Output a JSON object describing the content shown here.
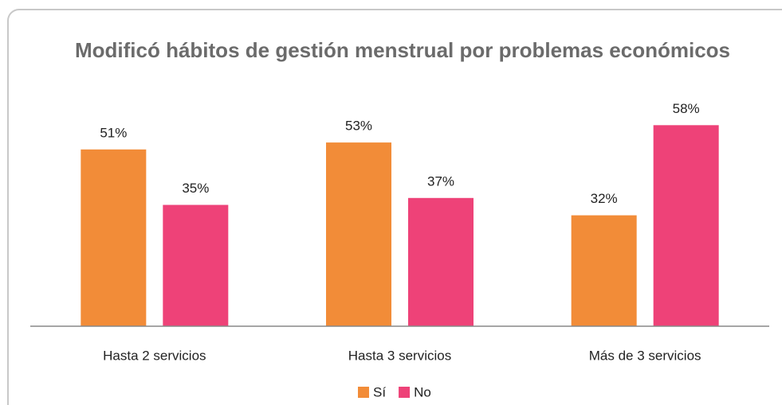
{
  "chart_data": {
    "type": "bar",
    "title": "Modificó hábitos de gestión menstrual por problemas económicos",
    "categories": [
      "Hasta 2 servicios",
      "Hasta 3 servicios",
      "Más de 3 servicios"
    ],
    "series": [
      {
        "name": "Sí",
        "color": "#f28c38",
        "values": [
          51,
          53,
          32
        ],
        "value_labels": [
          "51%",
          "53%",
          "32%"
        ]
      },
      {
        "name": "No",
        "color": "#ee4278",
        "values": [
          35,
          37,
          58
        ],
        "value_labels": [
          "35%",
          "37%",
          "58%"
        ]
      }
    ],
    "ylim": [
      0,
      60
    ],
    "legend": "bottom"
  }
}
